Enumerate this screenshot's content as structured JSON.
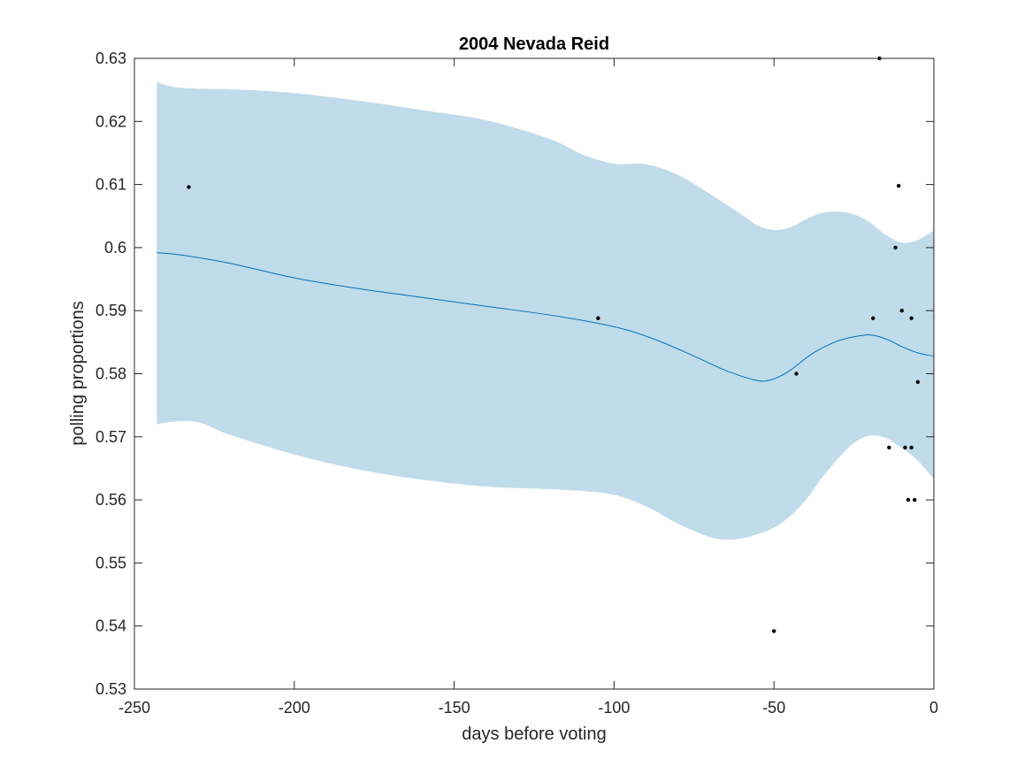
{
  "chart_data": {
    "type": "line",
    "title": "2004 Nevada Reid",
    "xlabel": "days before voting",
    "ylabel": "polling proportions",
    "xlim": [
      -250,
      0
    ],
    "ylim": [
      0.53,
      0.63
    ],
    "x_ticks": [
      -250,
      -200,
      -150,
      -100,
      -50,
      0
    ],
    "y_ticks": [
      0.53,
      0.54,
      0.55,
      0.56,
      0.57,
      0.58,
      0.59,
      0.6,
      0.61,
      0.62,
      0.63
    ],
    "x_tick_labels": [
      "-250",
      "-200",
      "-150",
      "-100",
      "-50",
      "0"
    ],
    "y_tick_labels": [
      "0.53",
      "0.54",
      "0.55",
      "0.56",
      "0.57",
      "0.58",
      "0.59",
      "0.6",
      "0.61",
      "0.62",
      "0.63"
    ],
    "grid": false,
    "colors": {
      "band": "#c0dcea",
      "line": "#0072bd",
      "points": "#000000",
      "axes": "#262626"
    },
    "series": [
      {
        "kind": "mean-line",
        "x": [
          -243,
          -235,
          -220,
          -200,
          -180,
          -160,
          -140,
          -120,
          -105,
          -95,
          -85,
          -75,
          -65,
          -55,
          -50,
          -45,
          -38,
          -30,
          -22,
          -18,
          -14,
          -10,
          -5,
          0
        ],
        "values": [
          0.5992,
          0.5988,
          0.5975,
          0.5952,
          0.5935,
          0.5921,
          0.5907,
          0.5893,
          0.588,
          0.5868,
          0.585,
          0.5828,
          0.5805,
          0.5789,
          0.5792,
          0.5805,
          0.5832,
          0.5852,
          0.5861,
          0.586,
          0.5853,
          0.5843,
          0.5833,
          0.5828
        ]
      },
      {
        "kind": "band-upper",
        "x": [
          -243,
          -238,
          -230,
          -220,
          -200,
          -180,
          -160,
          -140,
          -120,
          -110,
          -100,
          -90,
          -80,
          -70,
          -60,
          -55,
          -50,
          -45,
          -40,
          -35,
          -30,
          -25,
          -20,
          -15,
          -10,
          -5,
          0
        ],
        "values": [
          0.6263,
          0.6255,
          0.6252,
          0.6251,
          0.6245,
          0.6233,
          0.6218,
          0.6202,
          0.6172,
          0.6148,
          0.6133,
          0.6132,
          0.6115,
          0.6085,
          0.6052,
          0.6035,
          0.6028,
          0.6032,
          0.6045,
          0.6055,
          0.6057,
          0.6053,
          0.604,
          0.602,
          0.6008,
          0.6012,
          0.6027
        ]
      },
      {
        "kind": "band-lower",
        "x": [
          -243,
          -238,
          -230,
          -220,
          -200,
          -180,
          -160,
          -140,
          -120,
          -110,
          -100,
          -90,
          -80,
          -70,
          -65,
          -60,
          -55,
          -50,
          -45,
          -40,
          -35,
          -30,
          -25,
          -20,
          -15,
          -10,
          -5,
          0
        ],
        "values": [
          0.572,
          0.5724,
          0.5723,
          0.5703,
          0.5672,
          0.5648,
          0.5632,
          0.5621,
          0.5617,
          0.5614,
          0.5608,
          0.559,
          0.5562,
          0.5541,
          0.5537,
          0.5539,
          0.5546,
          0.5556,
          0.5574,
          0.56,
          0.5635,
          0.5665,
          0.569,
          0.5702,
          0.5698,
          0.5682,
          0.5662,
          0.5633
        ]
      },
      {
        "kind": "observations",
        "x": [
          -233,
          -105,
          -50,
          -43,
          -19,
          -17,
          -14,
          -12,
          -11,
          -10,
          -9,
          -8,
          -7,
          -7,
          -6,
          -5
        ],
        "values": [
          0.6096,
          0.5888,
          0.5392,
          0.58,
          0.5888,
          0.63,
          0.5683,
          0.6,
          0.6098,
          0.59,
          0.5683,
          0.56,
          0.5888,
          0.5683,
          0.56,
          0.5787
        ]
      }
    ]
  }
}
